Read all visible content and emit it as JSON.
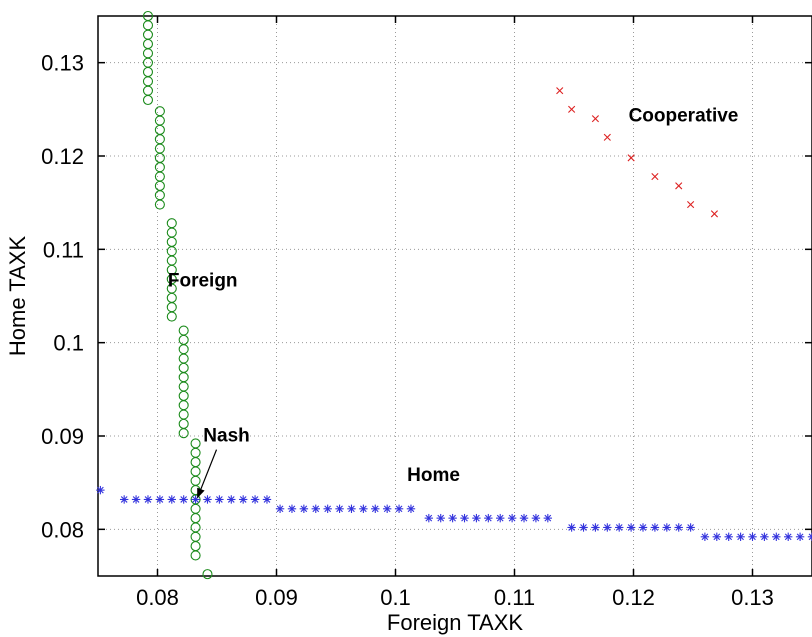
{
  "chart_data": {
    "type": "scatter",
    "xlabel": "Foreign TAXK",
    "ylabel": "Home TAXK",
    "xlim": [
      0.075,
      0.135
    ],
    "ylim": [
      0.075,
      0.135
    ],
    "xticks": [
      0.08,
      0.09,
      0.1,
      0.11,
      0.12,
      0.13
    ],
    "xtick_labels": [
      "0.08",
      "0.09",
      "0.1",
      "0.11",
      "0.12",
      "0.13"
    ],
    "yticks": [
      0.08,
      0.09,
      0.1,
      0.11,
      0.12,
      0.13
    ],
    "ytick_labels": [
      "0.08",
      "0.09",
      "0.1",
      "0.11",
      "0.12",
      "0.13"
    ],
    "grid": true,
    "series": [
      {
        "name": "Foreign",
        "marker": "circle",
        "color": "#1a8a1a",
        "segments": [
          {
            "x": 0.0792,
            "y_from": 0.126,
            "y_to": 0.135
          },
          {
            "x": 0.0802,
            "y_from": 0.1148,
            "y_to": 0.1248
          },
          {
            "x": 0.0812,
            "y_from": 0.1028,
            "y_to": 0.1135
          },
          {
            "x": 0.0822,
            "y_from": 0.0903,
            "y_to": 0.1015
          },
          {
            "x": 0.0832,
            "y_from": 0.0772,
            "y_to": 0.0893
          },
          {
            "x": 0.0842,
            "y_from": 0.0752,
            "y_to": 0.076
          }
        ]
      },
      {
        "name": "Home",
        "marker": "asterisk",
        "color": "#3333dd",
        "segments": [
          {
            "y": 0.0842,
            "x_from": 0.0752,
            "x_to": 0.076
          },
          {
            "y": 0.0832,
            "x_from": 0.0772,
            "x_to": 0.0893
          },
          {
            "y": 0.0822,
            "x_from": 0.0903,
            "x_to": 0.1015
          },
          {
            "y": 0.0812,
            "x_from": 0.1028,
            "x_to": 0.1135
          },
          {
            "y": 0.0802,
            "x_from": 0.1148,
            "x_to": 0.1248
          },
          {
            "y": 0.0792,
            "x_from": 0.126,
            "x_to": 0.135
          }
        ]
      },
      {
        "name": "Cooperative",
        "marker": "x",
        "color": "#dd2222",
        "points": [
          [
            0.1138,
            0.127
          ],
          [
            0.1148,
            0.125
          ],
          [
            0.1168,
            0.124
          ],
          [
            0.1178,
            0.122
          ],
          [
            0.1198,
            0.1198
          ],
          [
            0.1218,
            0.1178
          ],
          [
            0.1238,
            0.1168
          ],
          [
            0.1248,
            0.1148
          ],
          [
            0.1268,
            0.1138
          ]
        ]
      }
    ],
    "annotations": [
      {
        "text": "Cooperative",
        "x": 0.1242,
        "y": 0.1237
      },
      {
        "text": "Foreign",
        "x": 0.0838,
        "y": 0.106
      },
      {
        "text": "Home",
        "x": 0.1032,
        "y": 0.0852
      },
      {
        "text": "Nash",
        "x": 0.0858,
        "y": 0.0894,
        "arrow_to": [
          0.0832,
          0.0832
        ]
      }
    ]
  }
}
